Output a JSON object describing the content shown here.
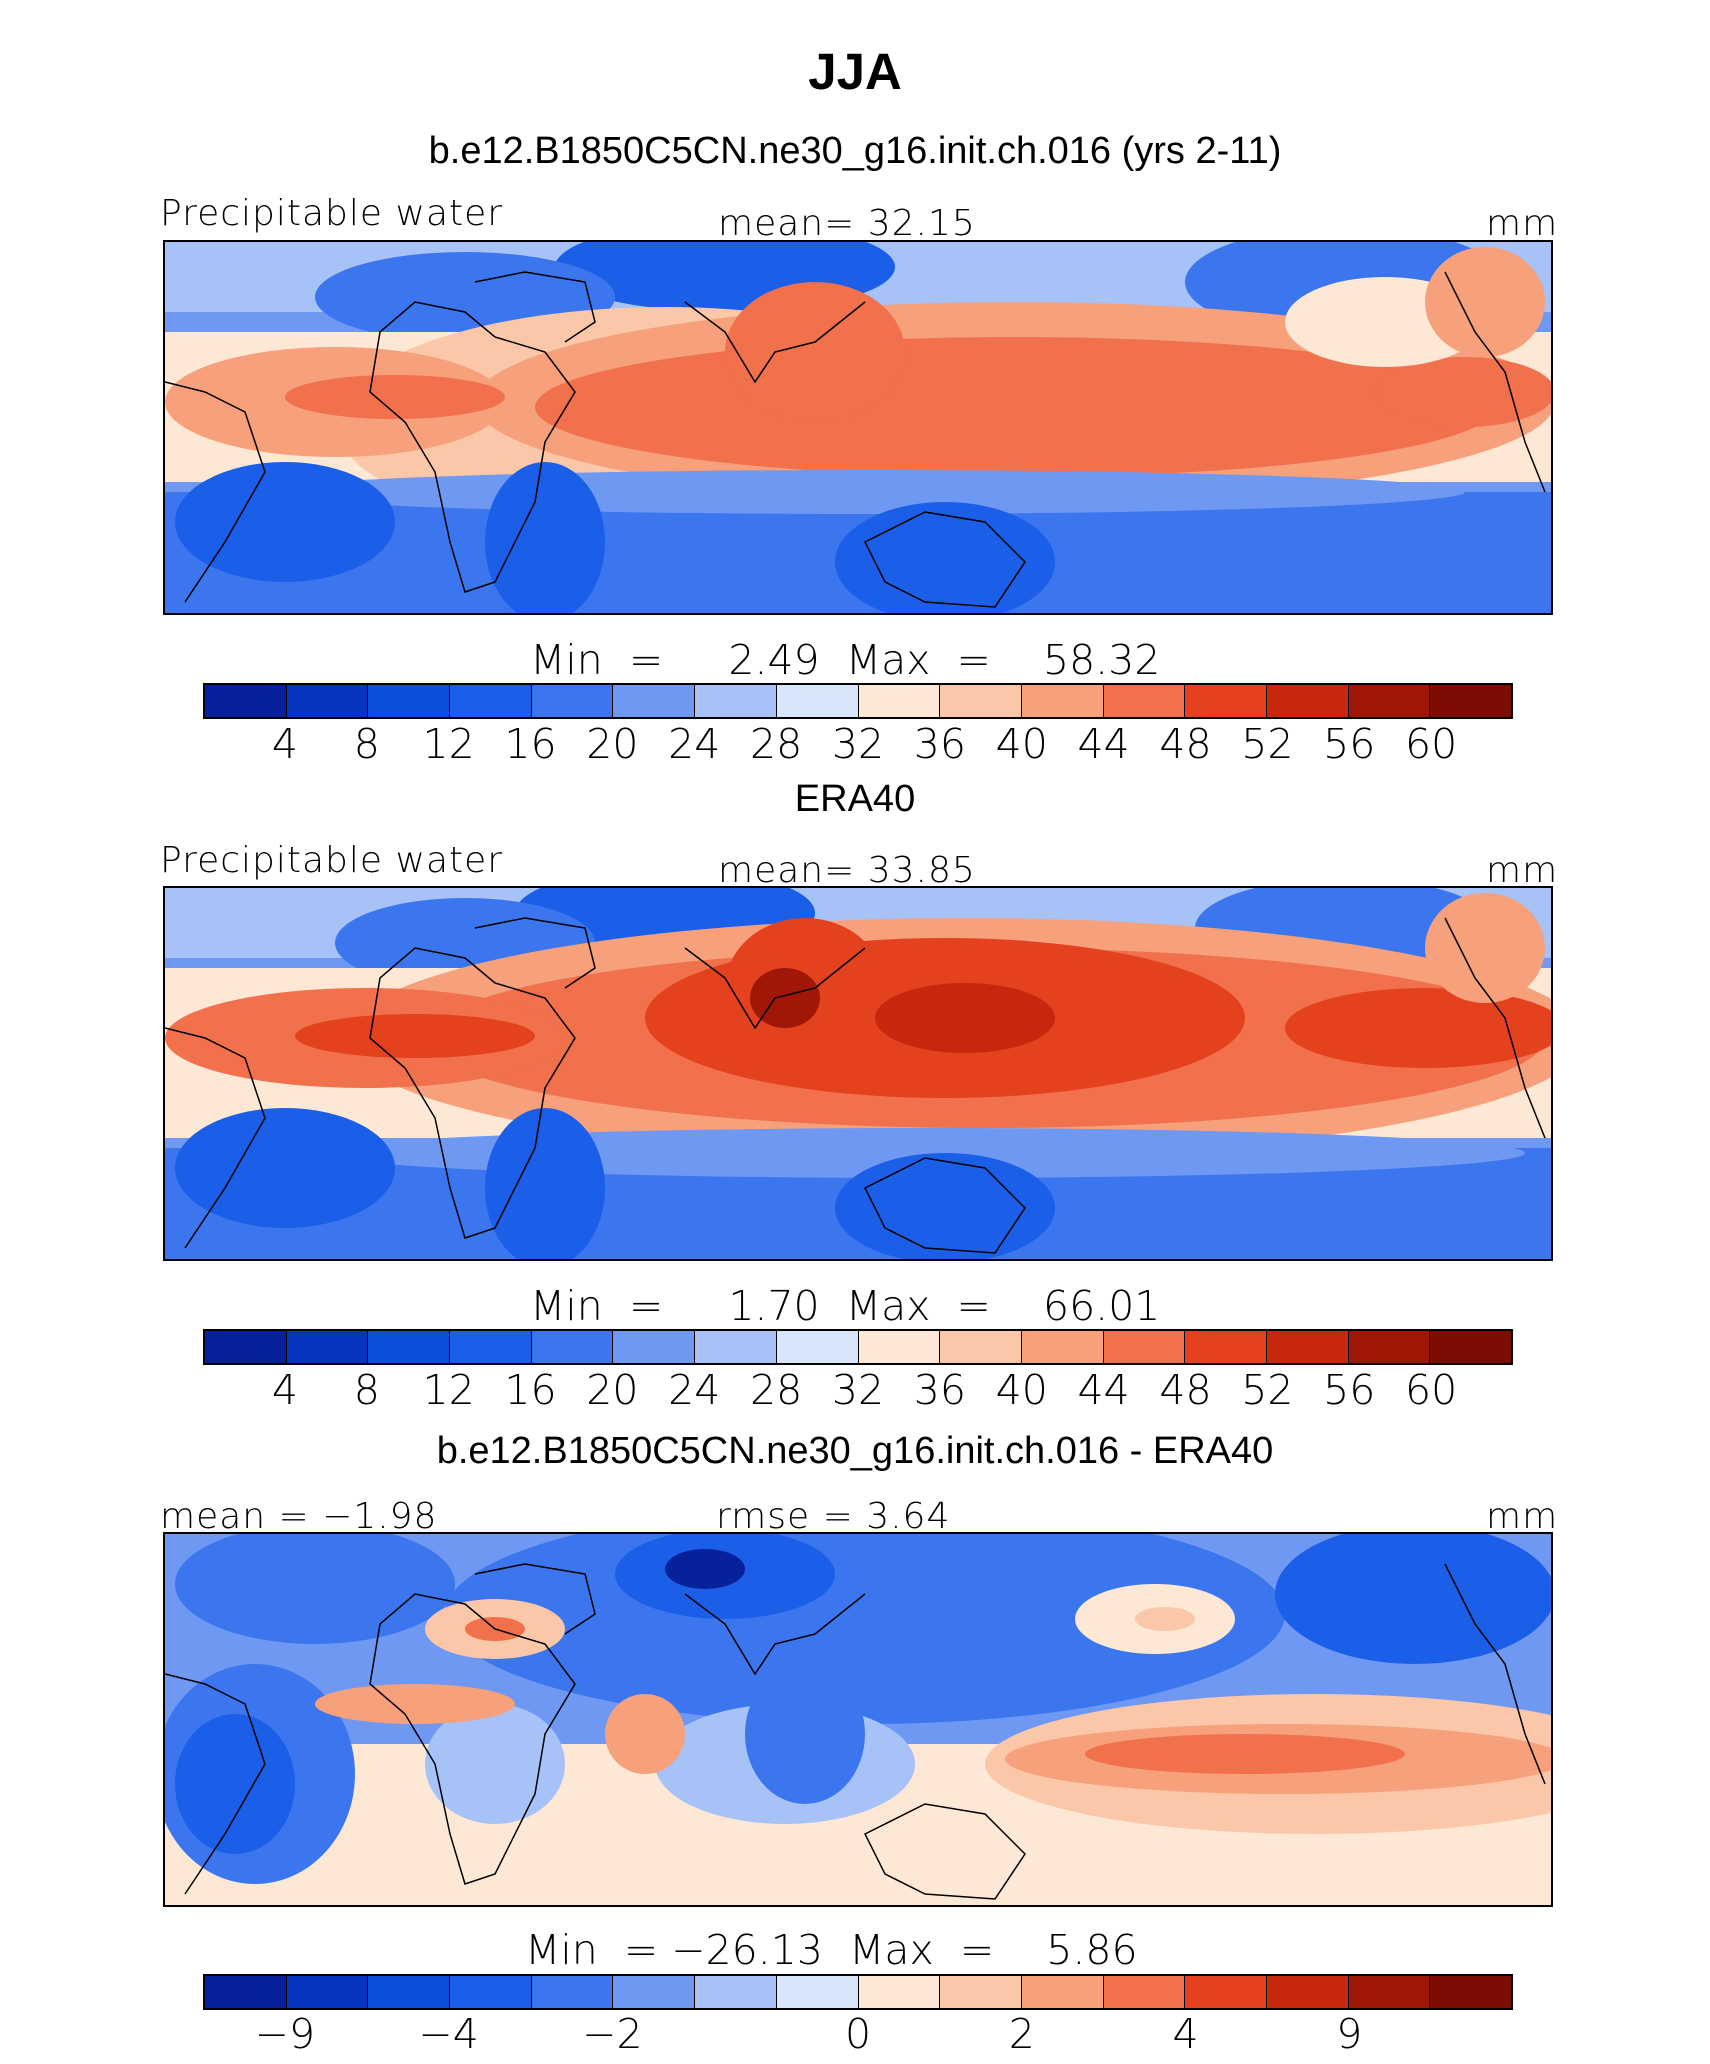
{
  "title": "JJA",
  "units": "mm",
  "colors": [
    "#06219a",
    "#0636bd",
    "#0c4ed9",
    "#1b5fe9",
    "#3c76ee",
    "#6f98f2",
    "#a7c2f7",
    "#d7e6fb",
    "#fde8d6",
    "#fbc7a9",
    "#f7a07c",
    "#f1714d",
    "#e4421f",
    "#c9260e",
    "#a01707",
    "#7d0d03"
  ],
  "panels": [
    {
      "title": "b.e12.B1850C5CN.ne30_g16.init.ch.016 (yrs 2-11)",
      "left_label": "Precipitable water",
      "center_label": "mean=   32.15",
      "right_label": "mm",
      "min_max": "Min  =     2.49  Max  =    58.32",
      "ticks": [
        "4",
        "8",
        "12",
        "16",
        "20",
        "24",
        "28",
        "32",
        "36",
        "40",
        "44",
        "48",
        "52",
        "56",
        "60"
      ]
    },
    {
      "title": "ERA40",
      "left_label": "Precipitable water",
      "center_label": "mean=   33.85",
      "right_label": "mm",
      "min_max": "Min  =     1.70  Max  =    66.01",
      "ticks": [
        "4",
        "8",
        "12",
        "16",
        "20",
        "24",
        "28",
        "32",
        "36",
        "40",
        "44",
        "48",
        "52",
        "56",
        "60"
      ]
    },
    {
      "title": "b.e12.B1850C5CN.ne30_g16.init.ch.016 - ERA40",
      "left_label": "mean =  −1.98",
      "center_label": "rmse =     3.64",
      "right_label": "mm",
      "min_max": "Min  = −26.13  Max  =    5.86",
      "ticks": [
        "−9",
        "−4",
        "−2",
        "0",
        "2",
        "4",
        "9"
      ]
    }
  ]
}
